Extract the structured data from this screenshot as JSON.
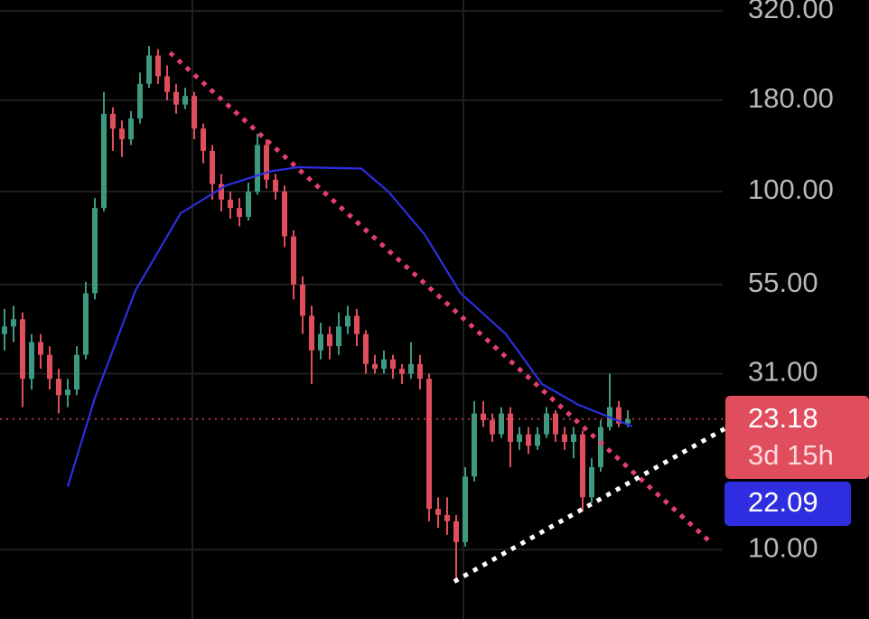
{
  "chart_data": {
    "type": "candlestick",
    "log_scale": true,
    "grid": true,
    "ylim": [
      6.4,
      343
    ],
    "yticks": [
      {
        "value": 320,
        "label": "320.00"
      },
      {
        "value": 180,
        "label": "180.00"
      },
      {
        "value": 100,
        "label": "100.00"
      },
      {
        "value": 55,
        "label": "55.00"
      },
      {
        "value": 31,
        "label": "31.00"
      },
      {
        "value": 10,
        "label": "10.00"
      }
    ],
    "xlim": [
      -0.5,
      79.5
    ],
    "xgrid": [
      20.8,
      50.8
    ],
    "up_color": "#3d9a80",
    "down_color": "#e04d5c",
    "open": [
      40,
      42,
      44,
      30,
      38,
      35,
      30,
      27,
      28,
      35,
      52,
      90,
      165,
      150,
      140,
      160,
      200,
      240,
      210,
      190,
      175,
      185,
      150,
      130,
      105,
      95,
      90,
      85,
      100,
      135,
      108,
      100,
      75,
      55,
      45,
      36,
      40,
      37,
      42,
      45,
      40,
      33,
      32,
      34,
      32,
      31,
      33,
      30,
      13,
      12.5,
      12,
      10.5,
      16,
      24,
      23,
      21,
      24,
      20,
      21,
      19.5,
      21,
      24,
      21,
      20,
      21,
      14,
      17,
      22,
      25,
      22.5
    ],
    "high": [
      47,
      48,
      46,
      40,
      40,
      37,
      32,
      30,
      37,
      56,
      96,
      190,
      172,
      158,
      168,
      215,
      255,
      250,
      225,
      200,
      195,
      190,
      155,
      135,
      112,
      100,
      96,
      106,
      145,
      140,
      112,
      104,
      78,
      58,
      48,
      43,
      42,
      46,
      48,
      47,
      41,
      35,
      36,
      35,
      33,
      38,
      35,
      31,
      14,
      14,
      12.5,
      17,
      26,
      26,
      24,
      25,
      25,
      22,
      22,
      22,
      25,
      24.5,
      22,
      22,
      21.5,
      18,
      23,
      31,
      26,
      24.5
    ],
    "low": [
      36,
      38,
      25,
      28,
      32,
      28,
      24,
      25,
      27,
      34,
      50,
      88,
      130,
      125,
      135,
      155,
      195,
      200,
      180,
      165,
      170,
      140,
      120,
      95,
      88,
      84,
      80,
      83,
      98,
      102,
      95,
      70,
      50,
      40,
      29,
      34,
      34,
      35,
      40,
      37,
      31,
      31,
      31,
      30,
      29,
      30,
      28,
      12,
      11.5,
      11,
      8.2,
      10.2,
      15.5,
      22,
      20,
      20.5,
      17,
      19,
      18.5,
      19,
      20.5,
      20,
      19,
      18,
      12.8,
      13.5,
      16.5,
      21.5,
      22,
      22
    ],
    "close": [
      42,
      44,
      30,
      38,
      35,
      30,
      27,
      28,
      35,
      52,
      90,
      165,
      150,
      140,
      160,
      200,
      240,
      210,
      190,
      175,
      185,
      150,
      130,
      105,
      95,
      90,
      85,
      100,
      135,
      108,
      100,
      75,
      55,
      45,
      36,
      40,
      37,
      42,
      45,
      40,
      33,
      32,
      34,
      32,
      31,
      33,
      30,
      13,
      12.5,
      12,
      10.5,
      16,
      24,
      23,
      21,
      24,
      20,
      21,
      19.5,
      21,
      24,
      21,
      20,
      21,
      14,
      17,
      22,
      25,
      22.5,
      23.18
    ],
    "moving_average": {
      "color": "#2e2ee0",
      "x": [
        7,
        10,
        14.5,
        19.5,
        24.5,
        29.5,
        32.5,
        39.5,
        42.5,
        46.5,
        50.5,
        55.5,
        59.5,
        63.5,
        69.5
      ],
      "values": [
        15,
        26.5,
        53,
        87,
        104,
        114,
        117,
        116,
        100,
        76,
        52,
        40,
        29,
        25.4,
        22.09
      ]
    },
    "trendlines": [
      {
        "color": "#e0406a",
        "x": [
          18.5,
          78.5
        ],
        "values": [
          242,
          10.3
        ]
      },
      {
        "color": "#ffffff",
        "x": [
          50,
          79.5
        ],
        "values": [
          8.2,
          21.6
        ]
      }
    ],
    "last_price": {
      "value": 23.18,
      "countdown": "3d 15h",
      "color": "#e04d5c"
    },
    "ma_price": {
      "value": 22.09,
      "color": "#2e2ee0"
    }
  }
}
